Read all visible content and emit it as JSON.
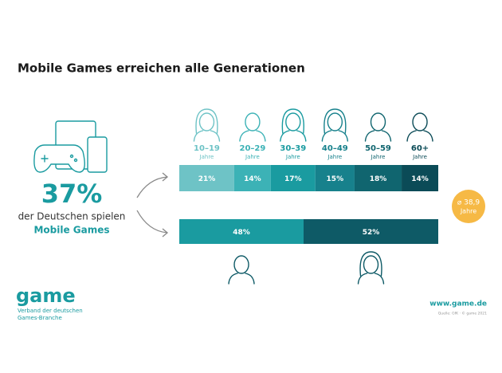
{
  "header": {
    "title": "Mobile Games erreichen alle Generationen"
  },
  "summary": {
    "share_label": "37%",
    "line1": "der Deutschen spielen",
    "line2": "Mobile Games"
  },
  "age_groups": {
    "categories": [
      "10–19",
      "20–29",
      "30–39",
      "40–49",
      "50–59",
      "60+"
    ],
    "unit": "Jahre",
    "values": [
      21,
      14,
      17,
      15,
      18,
      14
    ],
    "value_labels": [
      "21%",
      "14%",
      "17%",
      "15%",
      "18%",
      "14%"
    ],
    "colors": [
      "#6ec3c6",
      "#3cb2b6",
      "#1a9ba0",
      "#17818c",
      "#10656f",
      "#0b4b57"
    ]
  },
  "gender": {
    "values": [
      48,
      52
    ],
    "value_labels": [
      "48%",
      "52%"
    ],
    "colors": [
      "#1a9ba0",
      "#0e5a66"
    ]
  },
  "average_age": {
    "label": "⌀ 38,9",
    "unit": "Jahre"
  },
  "footer": {
    "logo": "game",
    "org_line1": "Verband der deutschen",
    "org_line2": "Games-Branche",
    "url": "www.game.de",
    "source": "Quelle: GfK · © game 2021"
  }
}
